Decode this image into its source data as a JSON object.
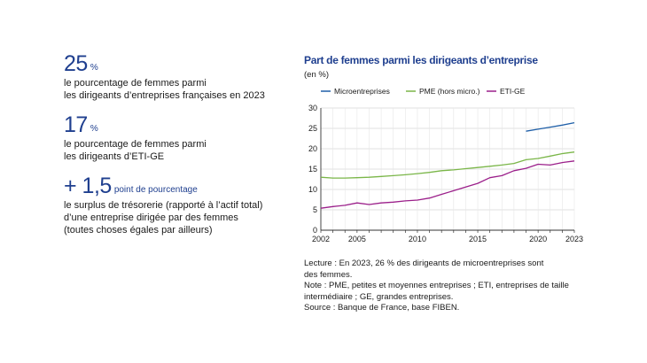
{
  "kpis": [
    {
      "value": "25",
      "unit": "%",
      "desc_lines": [
        "le pourcentage de femmes parmi",
        "les dirigeants d’entreprises françaises en 2023"
      ]
    },
    {
      "value": "17",
      "unit": "%",
      "desc_lines": [
        "le pourcentage de femmes parmi",
        "les dirigeants d’ETI-GE"
      ]
    },
    {
      "value": "+ 1,5",
      "unit": "point de pourcentage",
      "desc_lines": [
        "le surplus de trésorerie (rapporté à l’actif total)",
        "d’une entreprise dirigée par des femmes",
        "(toutes choses égales par ailleurs)"
      ]
    }
  ],
  "chart_data": {
    "type": "line",
    "title": "Part de femmes parmi les dirigeants d’entreprise",
    "ylabel": "(en %)",
    "xlabel": "",
    "xlim": [
      2002,
      2023
    ],
    "ylim": [
      0,
      30
    ],
    "x_ticks": [
      2002,
      2005,
      2010,
      2015,
      2020,
      2023
    ],
    "y_ticks": [
      0,
      5,
      10,
      15,
      20,
      25,
      30
    ],
    "grid": true,
    "legend_position": "top",
    "series": [
      {
        "name": "Microentreprises",
        "color": "#1f5fa8",
        "x": [
          2019,
          2020,
          2021,
          2022,
          2023
        ],
        "y": [
          24.3,
          24.8,
          25.3,
          25.8,
          26.4
        ]
      },
      {
        "name": "PME (hors micro.)",
        "color": "#7ab648",
        "x": [
          2002,
          2003,
          2004,
          2005,
          2006,
          2007,
          2008,
          2009,
          2010,
          2011,
          2012,
          2013,
          2014,
          2015,
          2016,
          2017,
          2018,
          2019,
          2020,
          2021,
          2022,
          2023
        ],
        "y": [
          13.0,
          12.8,
          12.8,
          12.9,
          13.0,
          13.2,
          13.4,
          13.6,
          13.9,
          14.2,
          14.6,
          14.8,
          15.1,
          15.4,
          15.7,
          16.0,
          16.4,
          17.3,
          17.6,
          18.2,
          18.8,
          19.2
        ]
      },
      {
        "name": "ETI-GE",
        "color": "#9b1f8a",
        "x": [
          2002,
          2003,
          2004,
          2005,
          2006,
          2007,
          2008,
          2009,
          2010,
          2011,
          2012,
          2013,
          2014,
          2015,
          2016,
          2017,
          2018,
          2019,
          2020,
          2021,
          2022,
          2023
        ],
        "y": [
          5.4,
          5.8,
          6.1,
          6.7,
          6.3,
          6.7,
          6.9,
          7.2,
          7.4,
          7.9,
          8.8,
          9.7,
          10.6,
          11.5,
          12.9,
          13.4,
          14.6,
          15.2,
          16.2,
          16.0,
          16.6,
          17.0
        ]
      }
    ]
  },
  "notes": [
    "Lecture : En 2023, 26 % des dirigeants de microentreprises sont",
    "des femmes.",
    "Note : PME, petites et moyennes entreprises ; ETI, entreprises de taille",
    "intermédiaire ; GE, grandes entreprises.",
    "Source : Banque de France, base FIBEN."
  ]
}
